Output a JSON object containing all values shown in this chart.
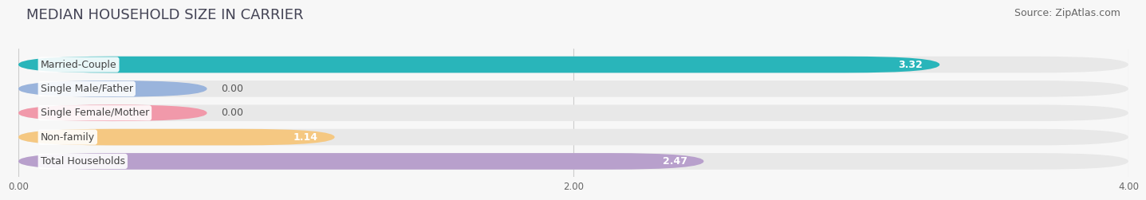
{
  "title": "MEDIAN HOUSEHOLD SIZE IN CARRIER",
  "source": "Source: ZipAtlas.com",
  "categories": [
    "Married-Couple",
    "Single Male/Father",
    "Single Female/Mother",
    "Non-family",
    "Total Households"
  ],
  "values": [
    3.32,
    0.0,
    0.0,
    1.14,
    2.47
  ],
  "bar_colors": [
    "#29b5ba",
    "#9ab4dc",
    "#f199aa",
    "#f5c882",
    "#b8a0cc"
  ],
  "xlim_max": 4.0,
  "xtick_labels": [
    "0.00",
    "2.00",
    "4.00"
  ],
  "xtick_values": [
    0.0,
    2.0,
    4.0
  ],
  "background_color": "#f7f7f7",
  "bar_bg_color": "#e8e8e8",
  "title_fontsize": 13,
  "source_fontsize": 9,
  "value_fontsize": 9,
  "category_fontsize": 9,
  "bar_height": 0.68,
  "bar_gap": 0.32
}
